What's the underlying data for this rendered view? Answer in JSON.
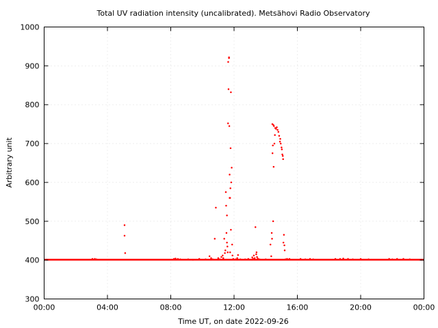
{
  "chart_data": {
    "type": "scatter",
    "title": "Total UV radiation intensity (uncalibrated). Metsähovi Radio Observatory",
    "xlabel": "Time UT, on date 2022-09-26",
    "ylabel": "Arbitrary unit",
    "xlim": [
      0,
      24
    ],
    "ylim": [
      300,
      1000
    ],
    "x_unit": "hours UT",
    "x_ticks": [
      0,
      4,
      8,
      12,
      16,
      20,
      24
    ],
    "x_tick_labels": [
      "00:00",
      "04:00",
      "08:00",
      "12:00",
      "16:00",
      "20:00",
      "00:00"
    ],
    "y_ticks": [
      300,
      400,
      500,
      600,
      700,
      800,
      900,
      1000
    ],
    "y_tick_labels": [
      "300",
      "400",
      "500",
      "600",
      "700",
      "800",
      "900",
      "1000"
    ],
    "grid": true,
    "marker_color": "#ff0000",
    "series": [
      {
        "baseline": 401,
        "baseline_x_range": [
          0,
          24
        ],
        "points": [
          [
            3.05,
            403
          ],
          [
            3.2,
            403
          ],
          [
            3.3,
            402
          ],
          [
            5.08,
            490
          ],
          [
            5.08,
            463
          ],
          [
            5.12,
            418
          ],
          [
            8.2,
            403
          ],
          [
            8.3,
            404
          ],
          [
            8.45,
            403
          ],
          [
            8.6,
            402
          ],
          [
            9.1,
            402
          ],
          [
            9.4,
            401
          ],
          [
            9.8,
            403
          ],
          [
            10.2,
            402
          ],
          [
            10.45,
            410
          ],
          [
            10.55,
            405
          ],
          [
            10.65,
            402
          ],
          [
            10.78,
            455
          ],
          [
            10.85,
            535
          ],
          [
            11.0,
            405
          ],
          [
            11.1,
            402
          ],
          [
            11.2,
            408
          ],
          [
            11.28,
            412
          ],
          [
            11.32,
            405
          ],
          [
            11.38,
            455
          ],
          [
            11.42,
            418
          ],
          [
            11.45,
            425
          ],
          [
            11.48,
            575
          ],
          [
            11.5,
            540
          ],
          [
            11.52,
            470
          ],
          [
            11.55,
            445
          ],
          [
            11.55,
            515
          ],
          [
            11.58,
            435
          ],
          [
            11.6,
            420
          ],
          [
            11.62,
            752
          ],
          [
            11.63,
            910
          ],
          [
            11.65,
            840
          ],
          [
            11.68,
            922
          ],
          [
            11.68,
            920
          ],
          [
            11.7,
            745
          ],
          [
            11.72,
            620
          ],
          [
            11.72,
            560
          ],
          [
            11.75,
            560
          ],
          [
            11.75,
            420
          ],
          [
            11.77,
            585
          ],
          [
            11.78,
            688
          ],
          [
            11.8,
            478
          ],
          [
            11.8,
            832
          ],
          [
            11.82,
            600
          ],
          [
            11.85,
            638
          ],
          [
            11.88,
            440
          ],
          [
            11.9,
            412
          ],
          [
            11.95,
            403
          ],
          [
            12.1,
            402
          ],
          [
            12.2,
            405
          ],
          [
            12.25,
            413
          ],
          [
            12.4,
            402
          ],
          [
            12.7,
            402
          ],
          [
            12.9,
            403
          ],
          [
            13.15,
            407
          ],
          [
            13.2,
            403
          ],
          [
            13.25,
            412
          ],
          [
            13.3,
            405
          ],
          [
            13.35,
            485
          ],
          [
            13.4,
            415
          ],
          [
            13.42,
            420
          ],
          [
            13.45,
            408
          ],
          [
            13.5,
            404
          ],
          [
            13.6,
            402
          ],
          [
            14.0,
            402
          ],
          [
            14.3,
            440
          ],
          [
            14.35,
            410
          ],
          [
            14.38,
            470
          ],
          [
            14.4,
            455
          ],
          [
            14.42,
            750
          ],
          [
            14.43,
            675
          ],
          [
            14.45,
            695
          ],
          [
            14.47,
            500
          ],
          [
            14.48,
            748
          ],
          [
            14.5,
            640
          ],
          [
            14.52,
            745
          ],
          [
            14.55,
            700
          ],
          [
            14.58,
            722
          ],
          [
            14.6,
            740
          ],
          [
            14.65,
            738
          ],
          [
            14.7,
            742
          ],
          [
            14.75,
            735
          ],
          [
            14.8,
            730
          ],
          [
            14.85,
            720
          ],
          [
            14.9,
            705
          ],
          [
            14.92,
            712
          ],
          [
            14.95,
            700
          ],
          [
            15.0,
            690
          ],
          [
            15.02,
            685
          ],
          [
            15.05,
            672
          ],
          [
            15.08,
            668
          ],
          [
            15.1,
            660
          ],
          [
            15.12,
            445
          ],
          [
            15.15,
            465
          ],
          [
            15.18,
            438
          ],
          [
            15.2,
            425
          ],
          [
            15.25,
            402
          ],
          [
            15.35,
            403
          ],
          [
            15.5,
            403
          ],
          [
            16.2,
            403
          ],
          [
            16.5,
            402
          ],
          [
            16.8,
            403
          ],
          [
            17.0,
            402
          ],
          [
            18.4,
            403
          ],
          [
            18.7,
            403
          ],
          [
            18.9,
            404
          ],
          [
            19.2,
            403
          ],
          [
            19.5,
            402
          ],
          [
            20.0,
            403
          ],
          [
            20.5,
            402
          ],
          [
            21.8,
            403
          ],
          [
            22.0,
            402
          ],
          [
            22.3,
            403
          ],
          [
            22.7,
            403
          ],
          [
            23.1,
            402
          ]
        ]
      }
    ]
  }
}
